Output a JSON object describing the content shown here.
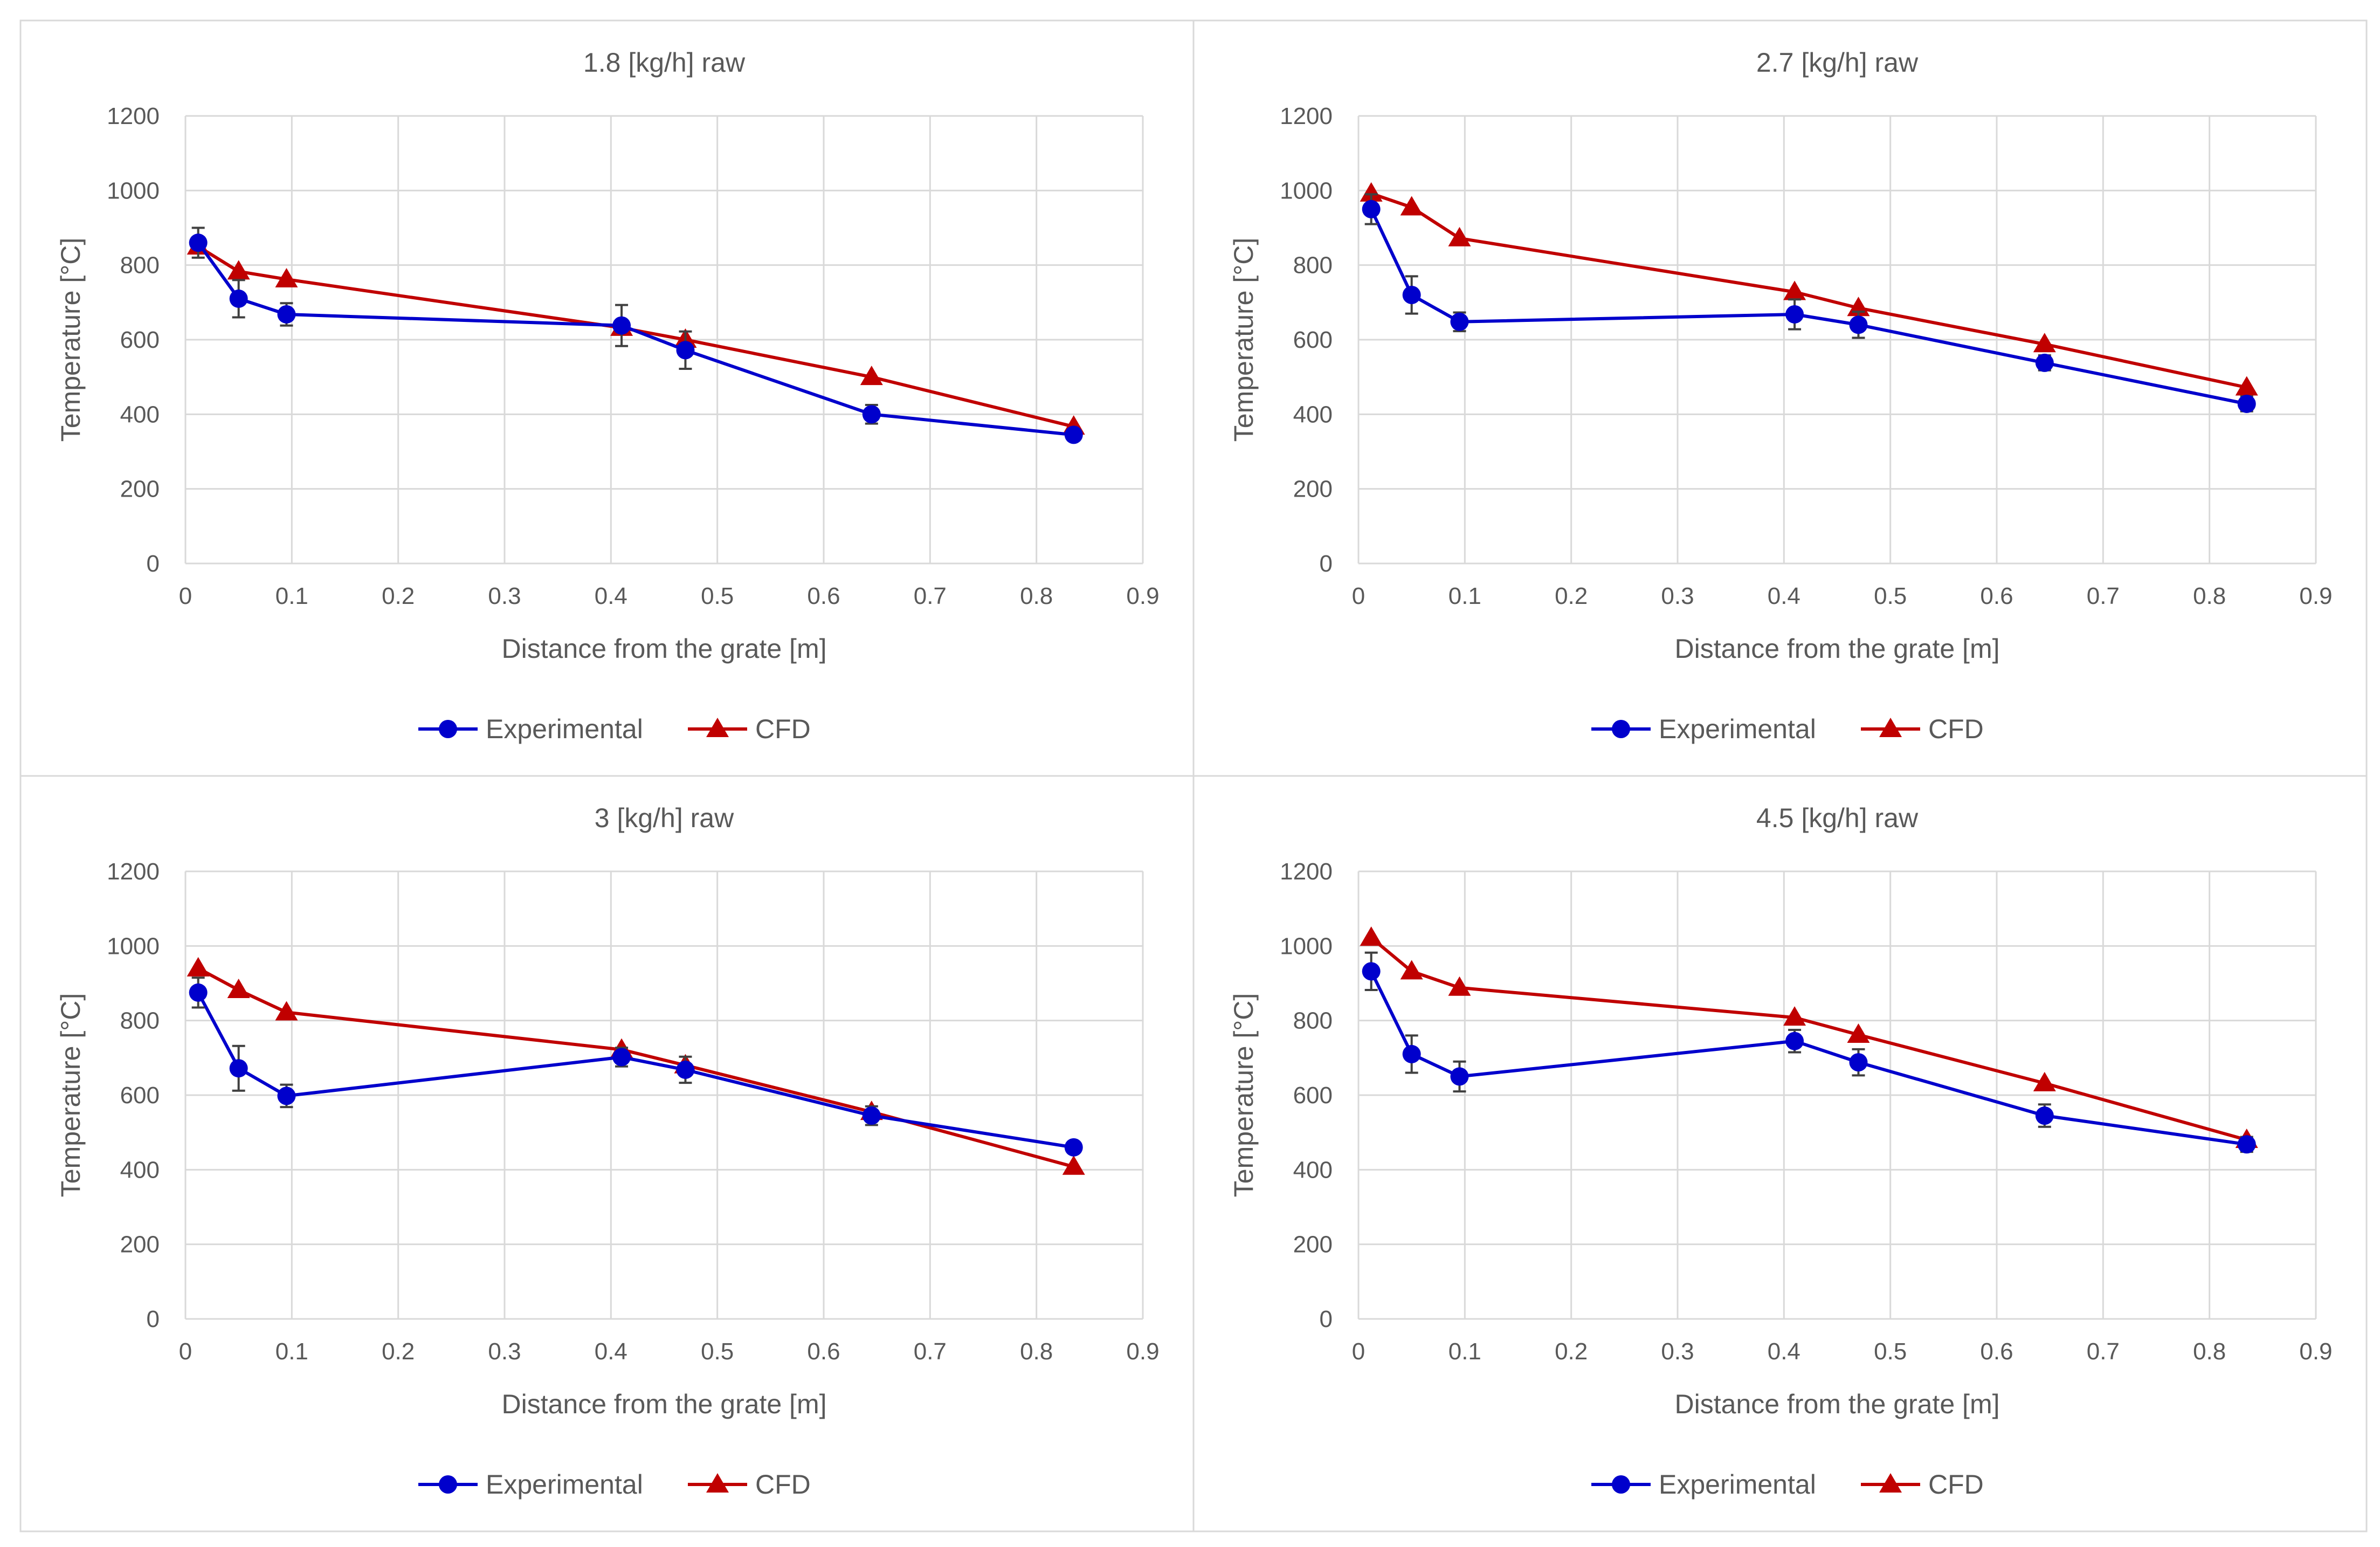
{
  "figure": {
    "legend": [
      {
        "name": "Experimental",
        "color": "#0000cc",
        "marker": "circle"
      },
      {
        "name": "CFD",
        "color": "#c00000",
        "marker": "triangle"
      }
    ]
  },
  "chart_data": [
    {
      "type": "line",
      "title": "1.8 [kg/h] raw",
      "xlabel": "Distance from the grate [m]",
      "ylabel": "Temperature [°C]",
      "xlim": [
        0,
        0.9
      ],
      "ylim": [
        0,
        1200
      ],
      "xticks": [
        0,
        0.1,
        0.2,
        0.3,
        0.4,
        0.5,
        0.6,
        0.7,
        0.8,
        0.9
      ],
      "xtick_labels": [
        "0",
        "0.1",
        "0.2",
        "0.3",
        "0.4",
        "0.5",
        "0.6",
        "0.7",
        "0.8",
        "0.9"
      ],
      "yticks": [
        0,
        200,
        400,
        600,
        800,
        1000,
        1200
      ],
      "ytick_labels": [
        "0",
        "200",
        "400",
        "600",
        "800",
        "1000",
        "1200"
      ],
      "grid": true,
      "legend_position": "bottom",
      "series": [
        {
          "name": "Experimental",
          "color": "#0000cc",
          "marker": "circle",
          "x": [
            0.012,
            0.05,
            0.095,
            0.41,
            0.47,
            0.645,
            0.835
          ],
          "y": [
            860,
            710,
            668,
            638,
            572,
            400,
            345
          ],
          "error": [
            40,
            50,
            30,
            55,
            50,
            25,
            15
          ]
        },
        {
          "name": "CFD",
          "color": "#c00000",
          "marker": "triangle",
          "x": [
            0.012,
            0.05,
            0.095,
            0.41,
            0.47,
            0.645,
            0.835
          ],
          "y": [
            850,
            783,
            762,
            632,
            600,
            500,
            367
          ]
        }
      ]
    },
    {
      "type": "line",
      "title": "2.7 [kg/h] raw",
      "xlabel": "Distance from the grate [m]",
      "ylabel": "Temperature [°C]",
      "xlim": [
        0,
        0.9
      ],
      "ylim": [
        0,
        1200
      ],
      "xticks": [
        0,
        0.1,
        0.2,
        0.3,
        0.4,
        0.5,
        0.6,
        0.7,
        0.8,
        0.9
      ],
      "xtick_labels": [
        "0",
        "0.1",
        "0.2",
        "0.3",
        "0.4",
        "0.5",
        "0.6",
        "0.7",
        "0.8",
        "0.9"
      ],
      "yticks": [
        0,
        200,
        400,
        600,
        800,
        1000,
        1200
      ],
      "ytick_labels": [
        "0",
        "200",
        "400",
        "600",
        "800",
        "1000",
        "1200"
      ],
      "grid": true,
      "legend_position": "bottom",
      "series": [
        {
          "name": "Experimental",
          "color": "#0000cc",
          "marker": "circle",
          "x": [
            0.012,
            0.05,
            0.095,
            0.41,
            0.47,
            0.645,
            0.835
          ],
          "y": [
            950,
            720,
            648,
            668,
            640,
            538,
            428
          ],
          "error": [
            40,
            50,
            25,
            40,
            35,
            20,
            20
          ]
        },
        {
          "name": "CFD",
          "color": "#c00000",
          "marker": "triangle",
          "x": [
            0.012,
            0.05,
            0.095,
            0.41,
            0.47,
            0.645,
            0.835
          ],
          "y": [
            992,
            955,
            872,
            728,
            685,
            588,
            472
          ]
        }
      ]
    },
    {
      "type": "line",
      "title": "3 [kg/h] raw",
      "xlabel": "Distance from the grate [m]",
      "ylabel": "Temperature [°C]",
      "xlim": [
        0,
        0.9
      ],
      "ylim": [
        0,
        1200
      ],
      "xticks": [
        0,
        0.1,
        0.2,
        0.3,
        0.4,
        0.5,
        0.6,
        0.7,
        0.8,
        0.9
      ],
      "xtick_labels": [
        "0",
        "0.1",
        "0.2",
        "0.3",
        "0.4",
        "0.5",
        "0.6",
        "0.7",
        "0.8",
        "0.9"
      ],
      "yticks": [
        0,
        200,
        400,
        600,
        800,
        1000,
        1200
      ],
      "ytick_labels": [
        "0",
        "200",
        "400",
        "600",
        "800",
        "1000",
        "1200"
      ],
      "grid": true,
      "legend_position": "bottom",
      "series": [
        {
          "name": "Experimental",
          "color": "#0000cc",
          "marker": "circle",
          "x": [
            0.012,
            0.05,
            0.095,
            0.41,
            0.47,
            0.645,
            0.835
          ],
          "y": [
            875,
            672,
            598,
            702,
            668,
            545,
            460
          ],
          "error": [
            40,
            60,
            30,
            25,
            35,
            25,
            15
          ]
        },
        {
          "name": "CFD",
          "color": "#c00000",
          "marker": "triangle",
          "x": [
            0.012,
            0.05,
            0.095,
            0.41,
            0.47,
            0.645,
            0.835
          ],
          "y": [
            940,
            882,
            822,
            722,
            680,
            555,
            408
          ]
        }
      ]
    },
    {
      "type": "line",
      "title": "4.5 [kg/h] raw",
      "xlabel": "Distance from the grate [m]",
      "ylabel": "Temperature [°C]",
      "xlim": [
        0,
        0.9
      ],
      "ylim": [
        0,
        1200
      ],
      "xticks": [
        0,
        0.1,
        0.2,
        0.3,
        0.4,
        0.5,
        0.6,
        0.7,
        0.8,
        0.9
      ],
      "xtick_labels": [
        "0",
        "0.1",
        "0.2",
        "0.3",
        "0.4",
        "0.5",
        "0.6",
        "0.7",
        "0.8",
        "0.9"
      ],
      "yticks": [
        0,
        200,
        400,
        600,
        800,
        1000,
        1200
      ],
      "ytick_labels": [
        "0",
        "200",
        "400",
        "600",
        "800",
        "1000",
        "1200"
      ],
      "grid": true,
      "legend_position": "bottom",
      "series": [
        {
          "name": "Experimental",
          "color": "#0000cc",
          "marker": "circle",
          "x": [
            0.012,
            0.05,
            0.095,
            0.41,
            0.47,
            0.645,
            0.835
          ],
          "y": [
            932,
            710,
            650,
            745,
            688,
            545,
            468
          ],
          "error": [
            50,
            50,
            40,
            30,
            35,
            30,
            20
          ]
        },
        {
          "name": "CFD",
          "color": "#c00000",
          "marker": "triangle",
          "x": [
            0.012,
            0.05,
            0.095,
            0.41,
            0.47,
            0.645,
            0.835
          ],
          "y": [
            1022,
            932,
            888,
            808,
            762,
            632,
            480
          ]
        }
      ]
    }
  ]
}
